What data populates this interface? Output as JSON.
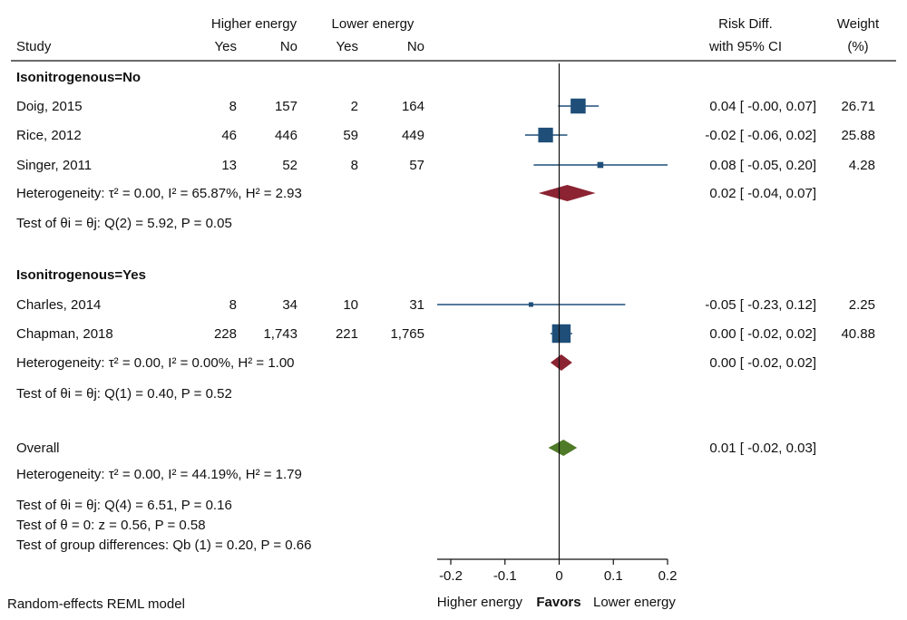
{
  "chart_data": {
    "type": "forest",
    "headers": {
      "study": "Study",
      "higher_energy": "Higher energy",
      "lower_energy": "Lower energy",
      "yes": "Yes",
      "no": "No",
      "risk_diff_line1": "Risk Diff.",
      "risk_diff_line2": "with 95% CI",
      "weight_line1": "Weight",
      "weight_line2": "(%)"
    },
    "xlim": [
      -0.2,
      0.2
    ],
    "xticks": [
      -0.2,
      -0.1,
      0,
      0.1,
      0.2
    ],
    "xtick_labels": [
      "-0.2",
      "-0.1",
      "0",
      "0.1",
      "0.2"
    ],
    "xlabel": {
      "left": "Higher energy",
      "center": "Favors",
      "right": "Lower energy"
    },
    "footnote": "Random-effects REML model",
    "groups": [
      {
        "label": "Isonitrogenous=No",
        "studies": [
          {
            "name": "Doig, 2015",
            "he_yes": "8",
            "he_no": "157",
            "le_yes": "2",
            "le_no": "164",
            "rd": 0.035,
            "lo": -0.002,
            "hi": 0.073,
            "ci_text": "0.04 [  -0.00,   0.07]",
            "weight": "26.71",
            "w": 26.71
          },
          {
            "name": "Rice, 2012",
            "he_yes": "46",
            "he_no": "446",
            "le_yes": "59",
            "le_no": "449",
            "rd": -0.025,
            "lo": -0.063,
            "hi": 0.015,
            "ci_text": "-0.02 [  -0.06,   0.02]",
            "weight": "25.88",
            "w": 25.88
          },
          {
            "name": "Singer, 2011",
            "he_yes": "13",
            "he_no": "52",
            "le_yes": "8",
            "le_no": "57",
            "rd": 0.076,
            "lo": -0.047,
            "hi": 0.2,
            "ci_text": "0.08 [  -0.05,   0.20]",
            "weight": "4.28",
            "w": 4.28
          }
        ],
        "summary": {
          "rd": 0.015,
          "lo": -0.038,
          "hi": 0.067,
          "ci_text": "0.02 [  -0.04,   0.07]",
          "label": "Heterogeneity:  τ² = 0.00, I² = 65.87%, H² = 2.93"
        },
        "test": "Test of  θi = θj: Q(2) = 5.92, P = 0.05"
      },
      {
        "label": "Isonitrogenous=Yes",
        "studies": [
          {
            "name": "Charles, 2014",
            "he_yes": "8",
            "he_no": "34",
            "le_yes": "10",
            "le_no": "31",
            "rd": -0.052,
            "lo": -0.225,
            "hi": 0.122,
            "ci_text": "-0.05 [  -0.23,   0.12]",
            "weight": "2.25",
            "w": 2.25
          },
          {
            "name": "Chapman, 2018",
            "he_yes": "228",
            "he_no": "1,743",
            "le_yes": "221",
            "le_no": "1,765",
            "rd": 0.004,
            "lo": -0.016,
            "hi": 0.024,
            "ci_text": "0.00 [  -0.02,   0.02]",
            "weight": "40.88",
            "w": 40.88
          }
        ],
        "summary": {
          "rd": 0.004,
          "lo": -0.016,
          "hi": 0.024,
          "ci_text": "0.00 [  -0.02,   0.02]",
          "label": "Heterogeneity:  τ² = 0.00, I² = 0.00%, H² = 1.00"
        },
        "test": "Test of  θi = θj: Q(1) = 0.40, P = 0.52"
      }
    ],
    "overall": {
      "label": "Overall",
      "rd": 0.008,
      "lo": -0.02,
      "hi": 0.033,
      "ci_text": "0.01 [  -0.02,   0.03]",
      "heterogeneity": "Heterogeneity:  τ² = 0.00, I² = 44.19%, H² = 1.79",
      "test_homog": "Test of  θi = θj: Q(4) = 6.51, P = 0.16",
      "test_theta": "Test of  θ = 0: z = 0.56, P = 0.58",
      "test_group": "Test of group differences: Qb (1) = 0.20, P = 0.66"
    },
    "colors": {
      "study": "#1f4e79",
      "subgroup": "#8b2332",
      "overall": "#4f7a28",
      "line": "#111111"
    }
  }
}
